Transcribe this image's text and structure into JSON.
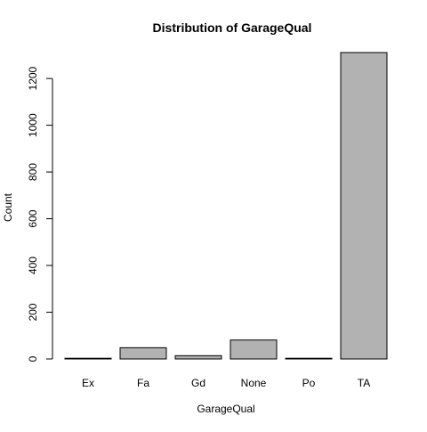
{
  "chart_data": {
    "type": "bar",
    "title": "Distribution of GarageQual",
    "xlabel": "GarageQual",
    "ylabel": "Count",
    "categories": [
      "Ex",
      "Fa",
      "Gd",
      "None",
      "Po",
      "TA"
    ],
    "values": [
      3,
      48,
      14,
      81,
      3,
      1311
    ],
    "ylim": [
      0,
      1311
    ],
    "yticks": [
      0,
      200,
      400,
      600,
      800,
      1000,
      1200
    ],
    "grid": false,
    "bar_color": "#b2b2b2",
    "bar_border_color": "#000000"
  }
}
